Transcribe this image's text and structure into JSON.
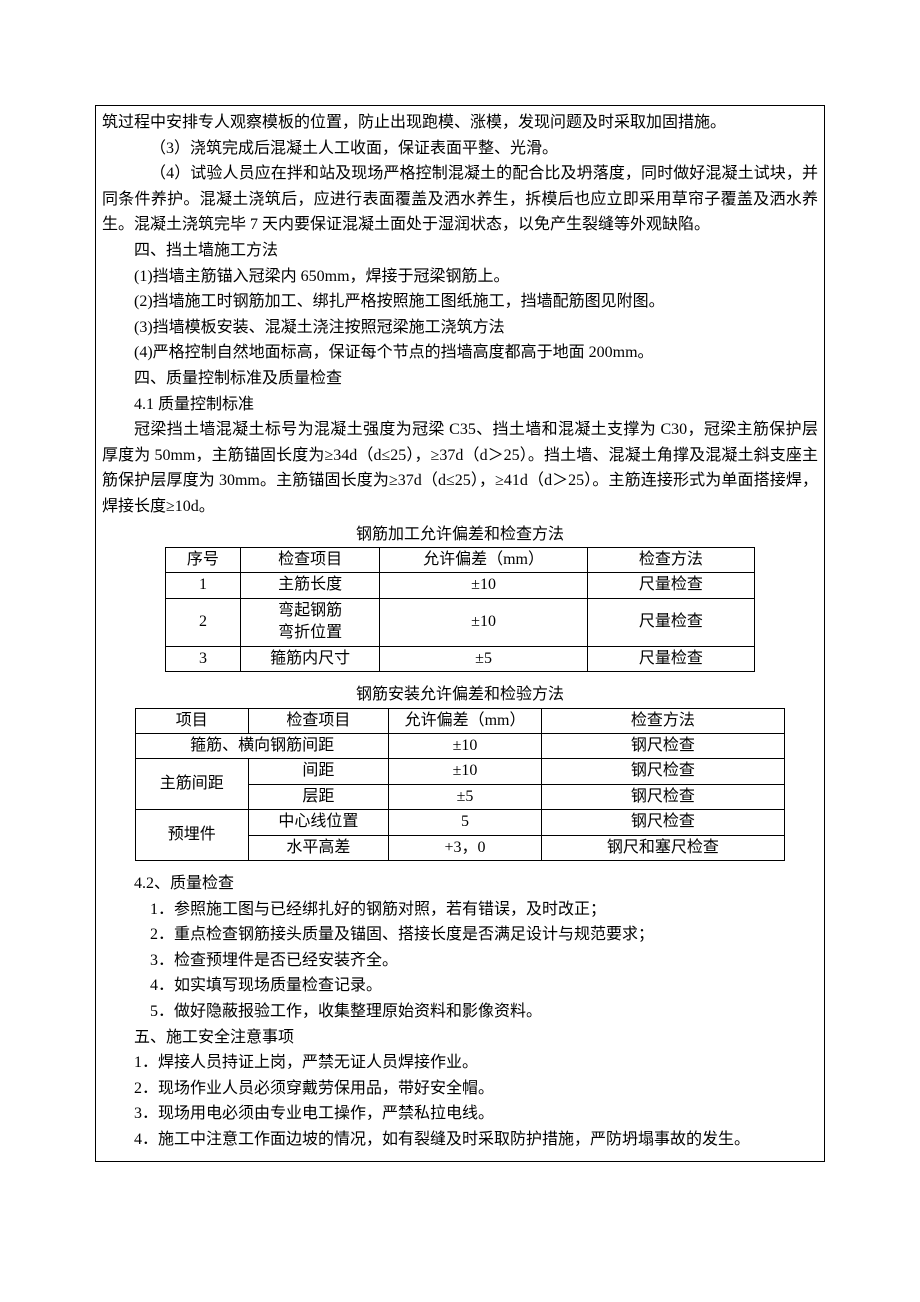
{
  "paragraphs": {
    "p0": "筑过程中安排专人观察模板的位置，防止出现跑模、涨模，发现问题及时采取加固措施。",
    "p1": "（3）浇筑完成后混凝土人工收面，保证表面平整、光滑。",
    "p2": "（4）试验人员应在拌和站及现场严格控制混凝土的配合比及坍落度，同时做好混凝土试块，并同条件养护。混凝土浇筑后，应进行表面覆盖及洒水养生，拆模后也应立即采用草帘子覆盖及洒水养生。混凝土浇筑完毕 7 天内要保证混凝土面处于湿润状态，以免产生裂缝等外观缺陷。",
    "h1": "四、挡土墙施工方法",
    "p3": "(1)挡墙主筋锚入冠梁内 650mm，焊接于冠梁钢筋上。",
    "p4": "(2)挡墙施工时钢筋加工、绑扎严格按照施工图纸施工，挡墙配筋图见附图。",
    "p5": "(3)挡墙模板安装、混凝土浇注按照冠梁施工浇筑方法",
    "p6": "(4)严格控制自然地面标高，保证每个节点的挡墙高度都高于地面 200mm。",
    "h2": "四、质量控制标准及质量检查",
    "h3": "4.1 质量控制标准",
    "p7": "冠梁挡土墙混凝土标号为混凝土强度为冠梁 C35、挡土墙和混凝土支撑为 C30，冠梁主筋保护层厚度为 50mm，主筋锚固长度为≥34d（d≤25），≥37d（d＞25）。挡土墙、混凝土角撑及混凝土斜支座主筋保护层厚度为 30mm。主筋锚固长度为≥37d（d≤25），≥41d（d＞25）。主筋连接形式为单面搭接焊，焊接长度≥10d。"
  },
  "table1": {
    "caption": "钢筋加工允许偏差和检查方法",
    "columns": [
      "序号",
      "检查项目",
      "允许偏差（mm）",
      "检查方法"
    ],
    "rows": [
      [
        "1",
        "主筋长度",
        "±10",
        "尺量检查"
      ],
      [
        "2",
        "弯起钢筋\n弯折位置",
        "±10",
        "尺量检查"
      ],
      [
        "3",
        "箍筋内尺寸",
        "±5",
        "尺量检查"
      ]
    ]
  },
  "table2": {
    "caption": "钢筋安装允许偏差和检验方法",
    "columns": [
      "项目",
      "检查项目",
      "允许偏差（mm）",
      "检查方法"
    ],
    "rows": [
      {
        "merged_first": "箍筋、横向钢筋间距",
        "c3": "±10",
        "c4": "钢尺检查"
      },
      {
        "c1": "主筋间距",
        "c1_rowspan": 2,
        "c2": "间距",
        "c3": "±10",
        "c4": "钢尺检查"
      },
      {
        "c2": "层距",
        "c3": "±5",
        "c4": "钢尺检查"
      },
      {
        "c1": "预埋件",
        "c1_rowspan": 2,
        "c2": "中心线位置",
        "c3": "5",
        "c4": "钢尺检查"
      },
      {
        "c2": "水平高差",
        "c3": "+3，0",
        "c4": "钢尺和塞尺检查"
      }
    ]
  },
  "after": {
    "h4": "4.2、质量检查",
    "l1": "1．参照施工图与已经绑扎好的钢筋对照，若有错误，及时改正；",
    "l2": "2．重点检查钢筋接头质量及锚固、搭接长度是否满足设计与规范要求；",
    "l3": "3．检查预埋件是否已经安装齐全。",
    "l4": "4．如实填写现场质量检查记录。",
    "l5": "5．做好隐蔽报验工作，收集整理原始资料和影像资料。",
    "h5": "五、施工安全注意事项",
    "s1": "1．焊接人员持证上岗，严禁无证人员焊接作业。",
    "s2": "2．现场作业人员必须穿戴劳保用品，带好安全帽。",
    "s3": "3．现场用电必须由专业电工操作，严禁私拉电线。",
    "s4": "4．施工中注意工作面边坡的情况，如有裂缝及时采取防护措施，严防坍塌事故的发生。"
  },
  "style": {
    "font_family": "SimSun",
    "font_size_pt": 12,
    "text_color": "#000000",
    "background_color": "#ffffff",
    "border_color": "#000000"
  }
}
